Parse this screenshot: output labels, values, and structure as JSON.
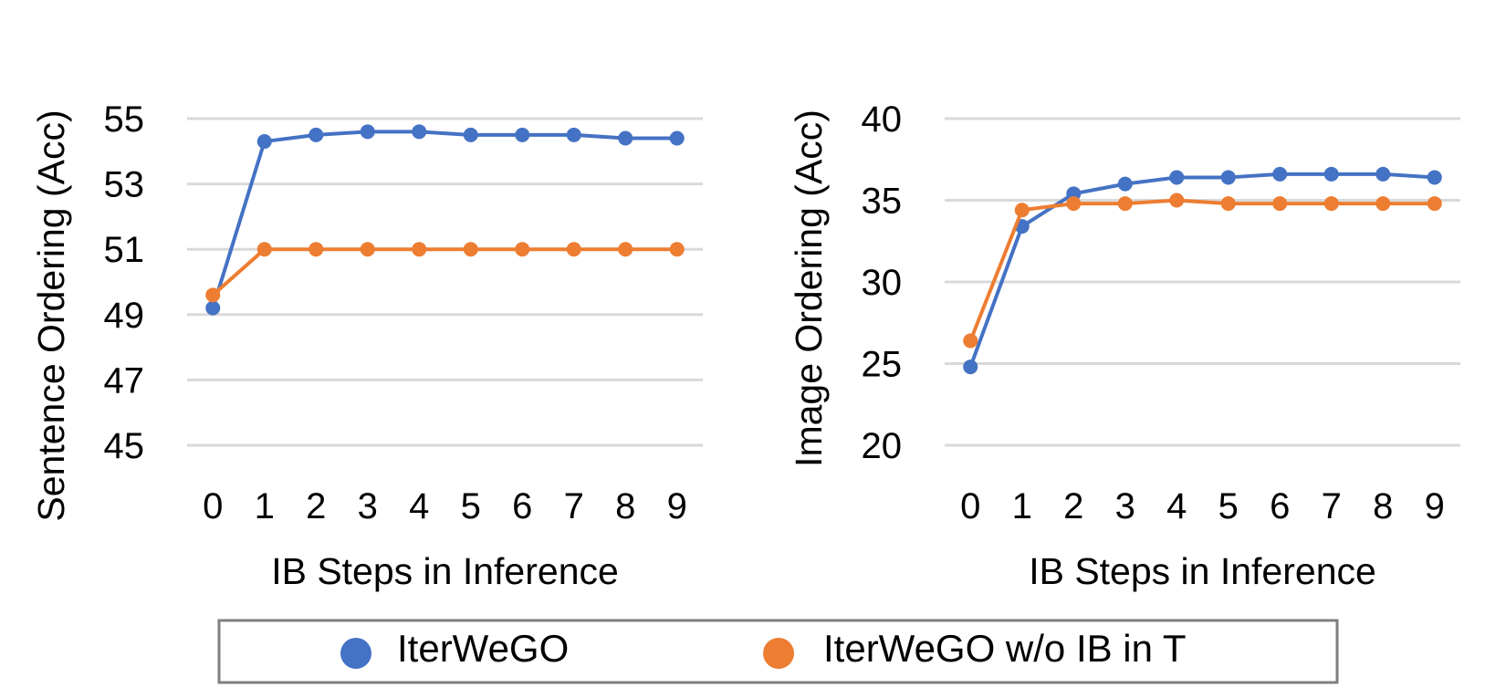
{
  "colors": {
    "series_1": "#4472C4",
    "series_2": "#ED7D31",
    "grid": "#D9D9D9",
    "legend_border": "#7F7F7F"
  },
  "legend": {
    "items": [
      "IterWeGO",
      "IterWeGO w/o IB in T"
    ],
    "placement": "bottom"
  },
  "chart_data": [
    {
      "type": "line",
      "title": "",
      "xlabel": "IB Steps in Inference",
      "ylabel": "Sentence Ordering (Acc)",
      "x": [
        0,
        1,
        2,
        3,
        4,
        5,
        6,
        7,
        8,
        9
      ],
      "y_ticks": [
        45,
        47,
        49,
        51,
        53,
        55
      ],
      "ylim": [
        45,
        55
      ],
      "grid": true,
      "series": [
        {
          "name": "IterWeGO",
          "values": [
            49.2,
            54.3,
            54.5,
            54.6,
            54.6,
            54.5,
            54.5,
            54.5,
            54.4,
            54.4
          ]
        },
        {
          "name": "IterWeGO w/o IB in T",
          "values": [
            49.6,
            51.0,
            51.0,
            51.0,
            51.0,
            51.0,
            51.0,
            51.0,
            51.0,
            51.0
          ]
        }
      ]
    },
    {
      "type": "line",
      "title": "",
      "xlabel": "IB Steps in Inference",
      "ylabel": "Image Ordering (Acc)",
      "x": [
        0,
        1,
        2,
        3,
        4,
        5,
        6,
        7,
        8,
        9
      ],
      "y_ticks": [
        20,
        25,
        30,
        35,
        40
      ],
      "ylim": [
        20,
        40
      ],
      "grid": true,
      "series": [
        {
          "name": "IterWeGO",
          "values": [
            24.8,
            33.4,
            35.4,
            36.0,
            36.4,
            36.4,
            36.6,
            36.6,
            36.6,
            36.4
          ]
        },
        {
          "name": "IterWeGO w/o IB in T",
          "values": [
            26.4,
            34.4,
            34.8,
            34.8,
            35.0,
            34.8,
            34.8,
            34.8,
            34.8,
            34.8
          ]
        }
      ]
    }
  ]
}
